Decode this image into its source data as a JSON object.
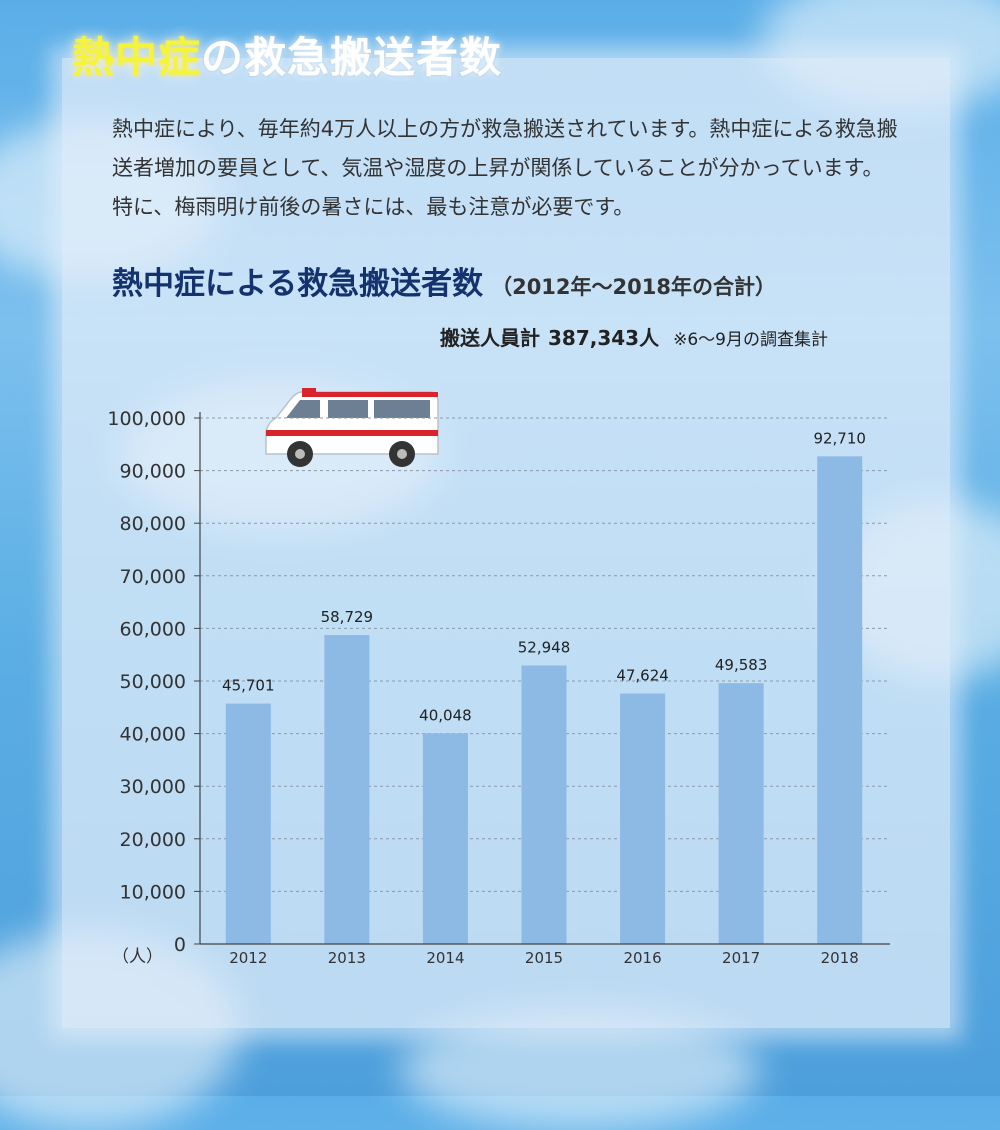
{
  "title": {
    "highlight": "熱中症",
    "rest": "の救急搬送者数"
  },
  "intro": "熱中症により、毎年約4万人以上の方が救急搬送されています。熱中症による救急搬送者増加の要員として、気温や湿度の上昇が関係していることが分かっています。特に、梅雨明け前後の暑さには、最も注意が必要です。",
  "chart_heading": {
    "main": "熱中症による救急搬送者数",
    "period": "（2012年〜2018年の合計）"
  },
  "total": {
    "label": "搬送人員計",
    "value": "387,343人",
    "note": "※6〜9月の調査集計"
  },
  "icons": [
    "ambulance-icon"
  ],
  "colors": {
    "bar": "#8db9e5",
    "title_highlight": "#f4f43a",
    "heading": "#14336e"
  },
  "chart_data": {
    "type": "bar",
    "categories": [
      "2012",
      "2013",
      "2014",
      "2015",
      "2016",
      "2017",
      "2018"
    ],
    "values": [
      45701,
      58729,
      40048,
      52948,
      47624,
      49583,
      92710
    ],
    "value_labels": [
      "45,701",
      "58,729",
      "40,048",
      "52,948",
      "47,624",
      "49,583",
      "92,710"
    ],
    "title": "熱中症による救急搬送者数",
    "ylabel": "（人）",
    "ylim": [
      0,
      100000
    ],
    "yticks": [
      0,
      10000,
      20000,
      30000,
      40000,
      50000,
      60000,
      70000,
      80000,
      90000,
      100000
    ],
    "ytick_labels": [
      "0",
      "10,000",
      "20,000",
      "30,000",
      "40,000",
      "50,000",
      "60,000",
      "70,000",
      "80,000",
      "90,000",
      "100,000"
    ],
    "grid": true
  }
}
